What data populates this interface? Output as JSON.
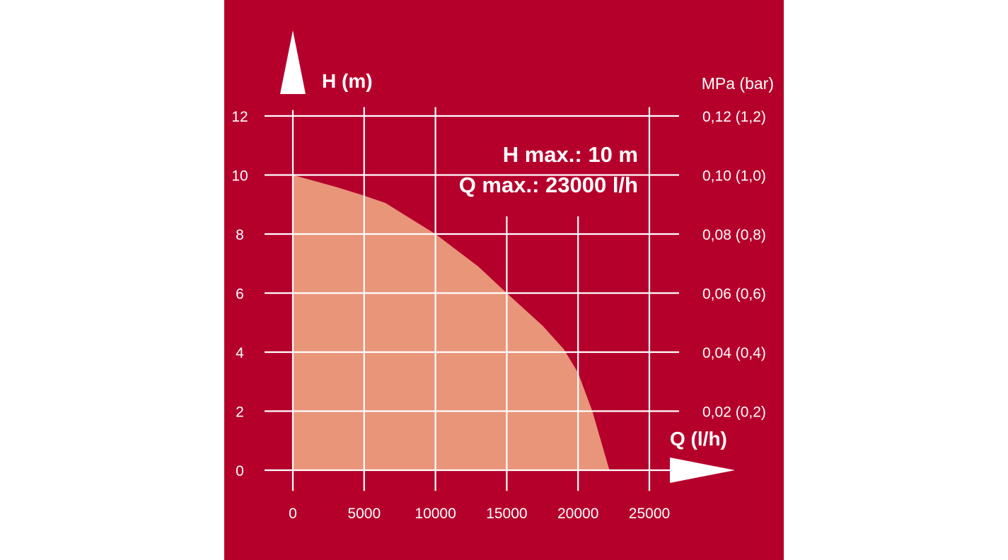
{
  "colors": {
    "background": "#b5002c",
    "curve_fill": "#e8957a",
    "grid": "#ffffff",
    "text": "#ffffff"
  },
  "chart_data": {
    "type": "area",
    "xlabel": "Q (l/h)",
    "ylabel": "H (m)",
    "y2label": "MPa (bar)",
    "xlim": [
      0,
      25000
    ],
    "ylim": [
      0,
      12
    ],
    "grid": true,
    "x_ticks": [
      0,
      5000,
      10000,
      15000,
      20000,
      25000
    ],
    "x_tick_labels": [
      "0",
      "5000",
      "10000",
      "15000",
      "20000",
      "25000"
    ],
    "y_ticks": [
      0,
      2,
      4,
      6,
      8,
      10,
      12
    ],
    "y_tick_labels": [
      "0",
      "2",
      "4",
      "6",
      "8",
      "10",
      "12"
    ],
    "y2_ticks": [
      2,
      4,
      6,
      8,
      10,
      12
    ],
    "y2_tick_labels": [
      "0,02 (0,2)",
      "0,04 (0,4)",
      "0,06 (0,6)",
      "0,08 (0,8)",
      "0,10 (1,0)",
      "0,12 (1,2)"
    ],
    "annotations": [
      "H max.: 10 m",
      "Q max.: 23000 l/h"
    ],
    "series": [
      {
        "x": [
          0,
          3000,
          5000,
          6500,
          8000,
          10000,
          13000,
          15000,
          17500,
          19000,
          20000,
          21000,
          22200
        ],
        "y": [
          10,
          9.6,
          9.3,
          9.05,
          8.6,
          8,
          6.9,
          6,
          4.9,
          4.1,
          3.3,
          2,
          0
        ]
      }
    ]
  }
}
